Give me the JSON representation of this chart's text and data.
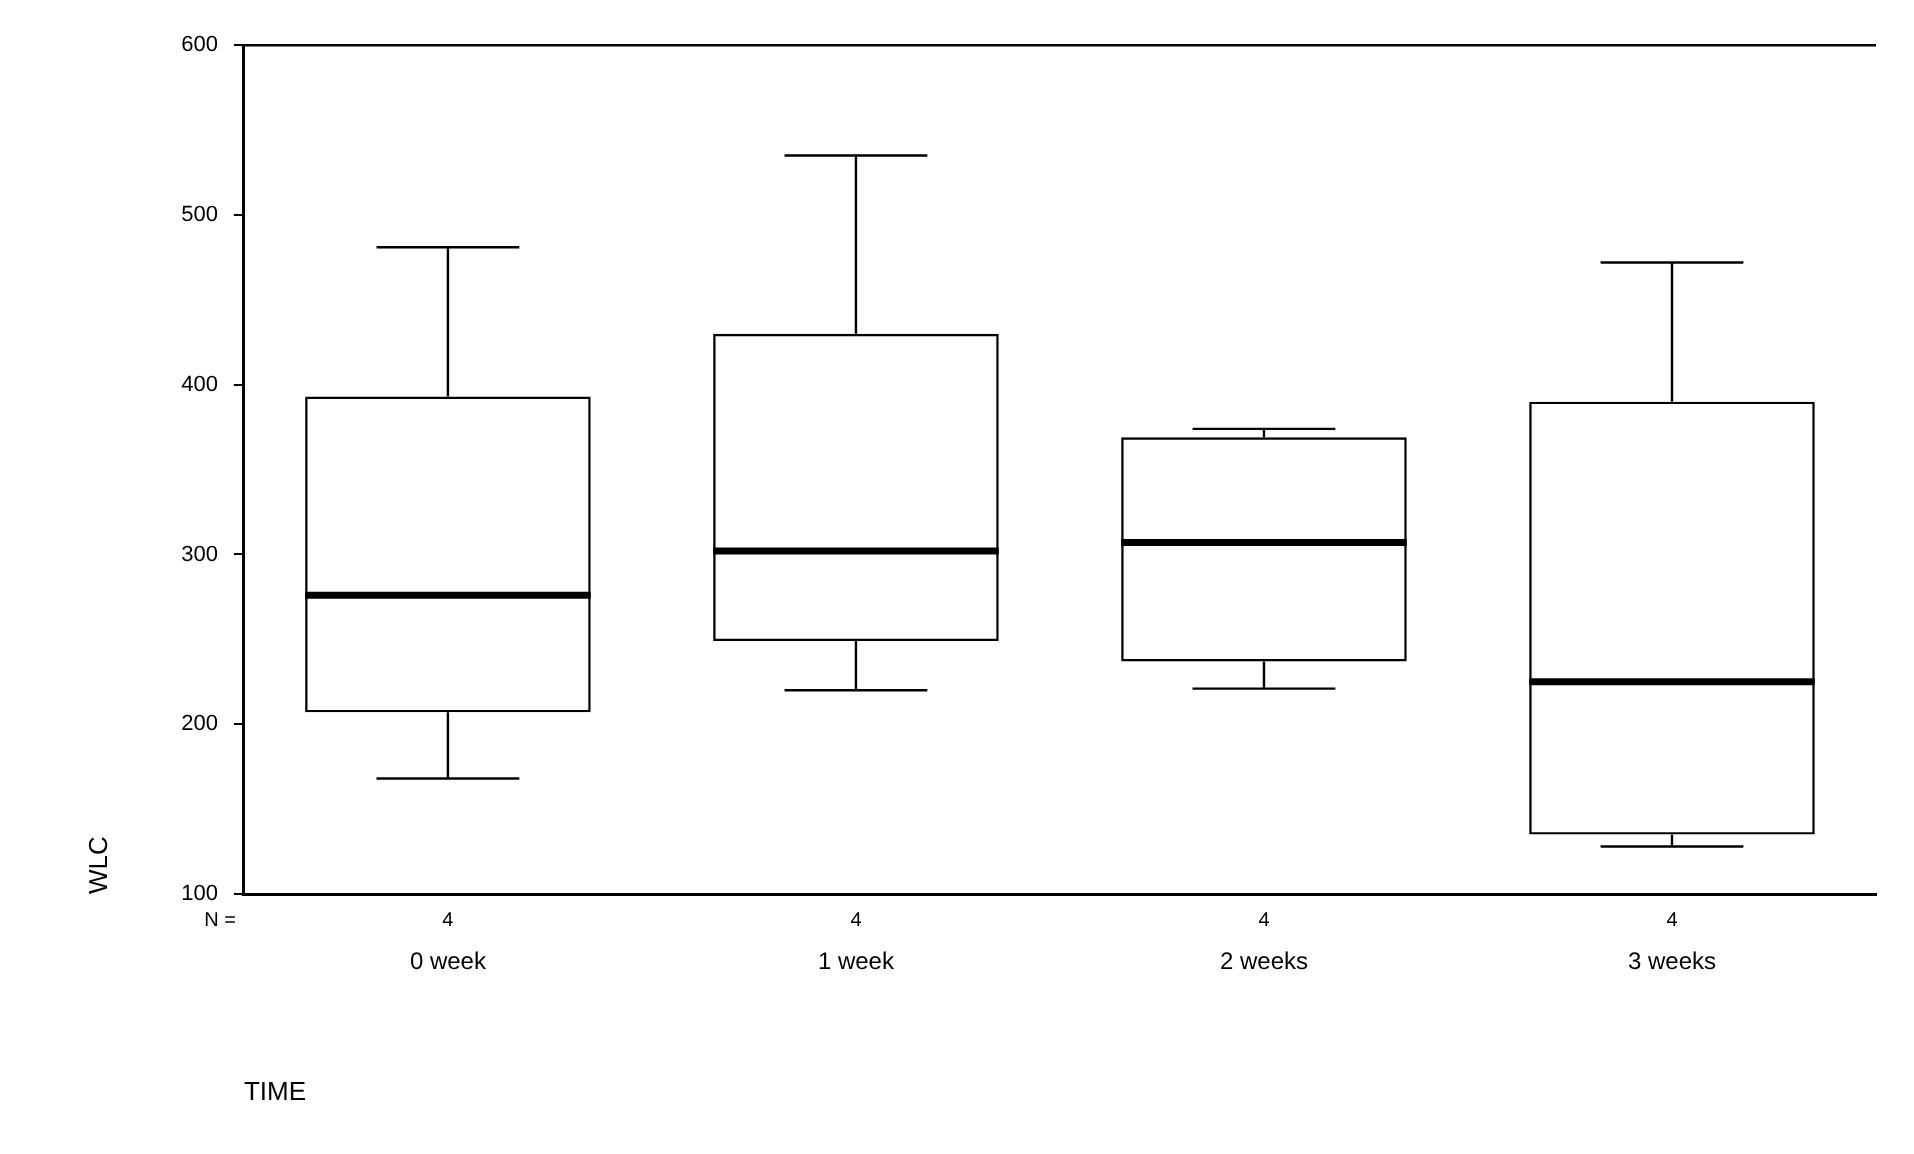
{
  "chart_data": {
    "type": "box",
    "xlabel": "TIME",
    "ylabel": "WLC",
    "categories": [
      "0 week",
      "1 week",
      "2 weeks",
      "3 weeks"
    ],
    "boxes": [
      {
        "low": 168,
        "q1": 207,
        "median": 276,
        "q3": 393,
        "high": 481
      },
      {
        "low": 220,
        "q1": 249,
        "median": 302,
        "q3": 430,
        "high": 535
      },
      {
        "low": 221,
        "q1": 237,
        "median": 307,
        "q3": 369,
        "high": 374
      },
      {
        "low": 128,
        "q1": 135,
        "median": 225,
        "q3": 390,
        "high": 472
      }
    ],
    "ylim": [
      100,
      600
    ],
    "yticks": [
      100,
      200,
      300,
      400,
      500,
      600
    ],
    "grid": false,
    "legend": false,
    "annotations": [
      "N =",
      "4",
      "4",
      "4",
      "4"
    ]
  }
}
